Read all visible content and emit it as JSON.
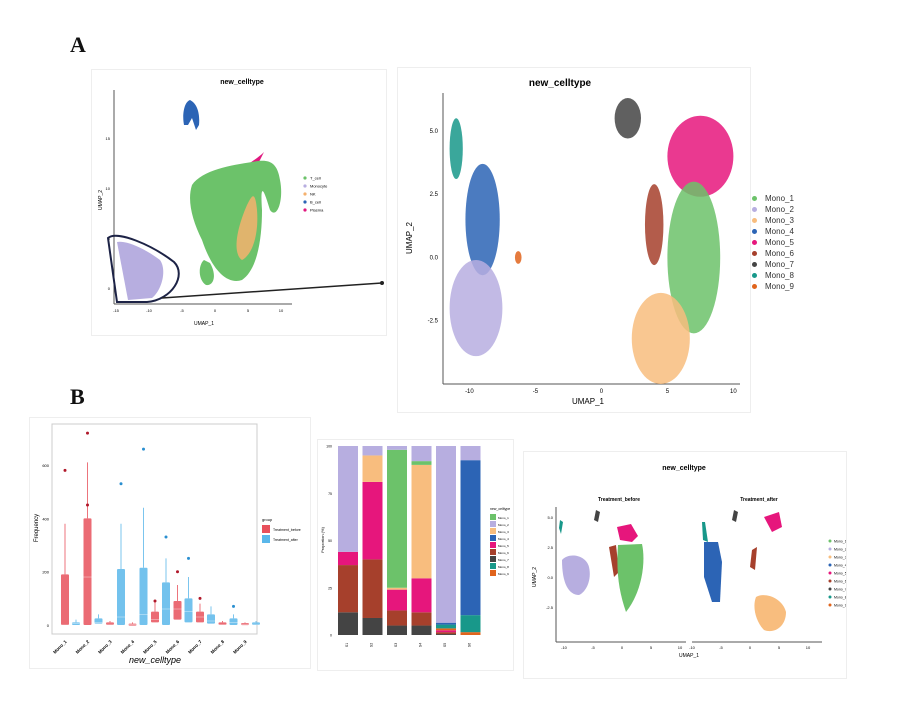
{
  "figure": {
    "panel_labels": [
      "A",
      "B"
    ]
  },
  "colors": {
    "T_cell": "#6cc26a",
    "Monocyte": "#b7aee0",
    "NK": "#f5b16d",
    "B_cell": "#2c64b5",
    "Plasma": "#e0187f",
    "Mono_1": "#6cc26a",
    "Mono_2": "#b7aee0",
    "Mono_3": "#f8bd7e",
    "Mono_4": "#2c64b5",
    "Mono_5": "#e6167c",
    "Mono_6": "#a6402c",
    "Mono_7": "#444444",
    "Mono_8": "#18988a",
    "Mono_9": "#e0641c",
    "before": "#e8515c",
    "after": "#5ab7ea"
  },
  "chart_data": [
    {
      "id": "umap_all",
      "type": "scatter",
      "title": "new_celltype",
      "xlabel": "UMAP_1",
      "ylabel": "UMAP_2",
      "xticks": [
        "-15",
        "-10",
        "-5",
        "0",
        "5",
        "10"
      ],
      "yticks": [
        "0",
        "5",
        "10",
        "15"
      ],
      "legend": [
        "T_cell",
        "Monocyte",
        "NK",
        "B_cell",
        "Plasma"
      ],
      "legend_position": "right",
      "annotation": "Monocyte cluster circled and expanded"
    },
    {
      "id": "umap_mono",
      "type": "scatter",
      "title": "new_celltype",
      "xlabel": "UMAP_1",
      "ylabel": "UMAP_2",
      "xticks": [
        "-10",
        "-5",
        "0",
        "5",
        "10"
      ],
      "yticks": [
        "-2.5",
        "0.0",
        "2.5",
        "5.0"
      ],
      "xlim": [
        -12,
        10.5
      ],
      "ylim": [
        -5,
        6.5
      ],
      "legend": [
        "Mono_1",
        "Mono_2",
        "Mono_3",
        "Mono_4",
        "Mono_5",
        "Mono_6",
        "Mono_7",
        "Mono_8",
        "Mono_9"
      ],
      "legend_position": "right",
      "clusters": [
        {
          "name": "Mono_8",
          "x": -11,
          "y": 4.3
        },
        {
          "name": "Mono_4",
          "x": -9,
          "y": 1.5
        },
        {
          "name": "Mono_2",
          "x": -9.5,
          "y": -2
        },
        {
          "name": "Mono_9",
          "x": -6.3,
          "y": 0
        },
        {
          "name": "Mono_7",
          "x": 2,
          "y": 5.5
        },
        {
          "name": "Mono_5",
          "x": 7.5,
          "y": 4
        },
        {
          "name": "Mono_6",
          "x": 4,
          "y": 1.3
        },
        {
          "name": "Mono_1",
          "x": 7,
          "y": 0
        },
        {
          "name": "Mono_3",
          "x": 4.5,
          "y": -3.2
        }
      ]
    },
    {
      "id": "boxplot",
      "type": "bar",
      "xlabel": "new_celltype",
      "ylabel": "Frequency",
      "yticks": [
        "0",
        "200",
        "400",
        "600"
      ],
      "ylim": [
        0,
        620
      ],
      "categories": [
        "Mono_1",
        "Mono_2",
        "Mono_3",
        "Mono_4",
        "Mono_5",
        "Mono_6",
        "Mono_7",
        "Mono_8",
        "Mono_9"
      ],
      "legend_title": "group",
      "legend": [
        "Treatment_before",
        "Treatment_after"
      ],
      "legend_position": "right",
      "series": [
        {
          "name": "Treatment_before",
          "q1": [
            0,
            0,
            0,
            0,
            10,
            20,
            10,
            0,
            0
          ],
          "median": [
            0,
            180,
            3,
            2,
            20,
            60,
            30,
            2,
            2
          ],
          "q3": [
            190,
            400,
            10,
            5,
            50,
            90,
            50,
            10,
            7
          ],
          "whisker": [
            380,
            610,
            15,
            10,
            90,
            150,
            80,
            15,
            10
          ],
          "outliers": [
            [
              580
            ],
            [
              720,
              450
            ],
            [],
            [],
            [
              90
            ],
            [
              200
            ],
            [
              100
            ],
            [],
            []
          ]
        },
        {
          "name": "Treatment_after",
          "q1": [
            0,
            5,
            0,
            0,
            0,
            10,
            5,
            0,
            0
          ],
          "median": [
            5,
            10,
            30,
            40,
            60,
            50,
            15,
            10,
            3
          ],
          "q3": [
            10,
            25,
            210,
            215,
            160,
            100,
            40,
            25,
            10
          ],
          "whisker": [
            20,
            40,
            380,
            440,
            250,
            180,
            70,
            40,
            15
          ],
          "outliers": [
            [],
            [],
            [
              530
            ],
            [
              660
            ],
            [
              330
            ],
            [
              250
            ],
            [],
            [
              70
            ],
            []
          ]
        }
      ]
    },
    {
      "id": "stacked",
      "type": "bar",
      "ylabel": "Proportion (%)",
      "yticks": [
        "0",
        "25",
        "50",
        "75",
        "100"
      ],
      "ylim": [
        0,
        100
      ],
      "legend_title": "new_celltype",
      "legend": [
        "Mono_1",
        "Mono_2",
        "Mono_3",
        "Mono_4",
        "Mono_5",
        "Mono_6",
        "Mono_7",
        "Mono_8",
        "Mono_9"
      ],
      "legend_position": "right",
      "categories": [
        "S1",
        "S2",
        "S3",
        "S4",
        "S5",
        "S6"
      ],
      "series": [
        {
          "name": "Mono_7",
          "values": [
            12,
            9,
            5,
            5,
            0.5,
            0
          ]
        },
        {
          "name": "Mono_6",
          "values": [
            25,
            31,
            8,
            7,
            1,
            0
          ]
        },
        {
          "name": "Mono_5",
          "values": [
            7,
            41,
            11,
            18,
            1,
            0
          ]
        },
        {
          "name": "Mono_9",
          "values": [
            0,
            0,
            0,
            0,
            1,
            1.5
          ]
        },
        {
          "name": "Mono_8",
          "values": [
            0,
            0,
            0,
            0,
            2,
            9
          ]
        },
        {
          "name": "Mono_4",
          "values": [
            0,
            0,
            0,
            0,
            1,
            82
          ]
        },
        {
          "name": "Mono_3",
          "values": [
            0,
            14,
            1,
            60,
            0,
            0
          ]
        },
        {
          "name": "Mono_1",
          "values": [
            0,
            0,
            73,
            2,
            0,
            0
          ]
        },
        {
          "name": "Mono_2",
          "values": [
            56,
            5,
            2,
            8,
            93.5,
            7.5
          ]
        }
      ]
    },
    {
      "id": "umap_split",
      "type": "scatter",
      "title": "new_celltype",
      "facets": [
        "Treatment_before",
        "Treatment_after"
      ],
      "xlabel": "UMAP_1",
      "ylabel": "UMAP_2",
      "xticks": [
        "-10",
        "-5",
        "0",
        "5",
        "10"
      ],
      "yticks": [
        "-2.5",
        "0.0",
        "2.5",
        "5.0"
      ],
      "legend": [
        "Mono_1",
        "Mono_2",
        "Mono_3",
        "Mono_4",
        "Mono_5",
        "Mono_6",
        "Mono_7",
        "Mono_8",
        "Mono_9"
      ],
      "legend_position": "right"
    }
  ]
}
